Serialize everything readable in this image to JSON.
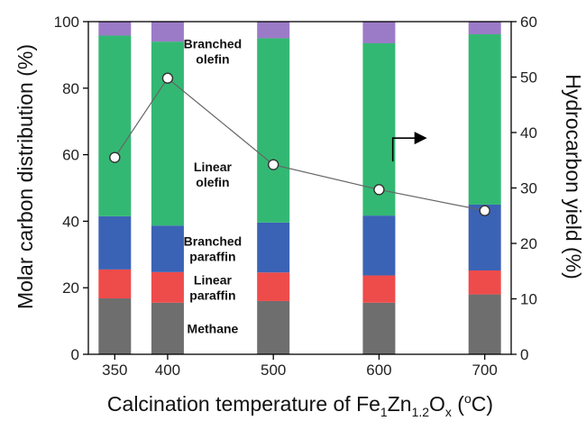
{
  "chart_data": {
    "type": "bar",
    "stacked": true,
    "categories": [
      "350",
      "400",
      "500",
      "600",
      "700"
    ],
    "x": [
      350,
      400,
      500,
      600,
      700
    ],
    "xlabel": "Calcination temperature of Fe₁Zn₁.₂Oₓ (ºC)",
    "xlabel_parts": {
      "pre": "Calcination temperature of Fe",
      "s1": "1",
      "zn": "Zn",
      "s2": "1.2",
      "o": "O",
      "s3": "x",
      "post": " (",
      "deg": "o",
      "unit": "C)"
    },
    "ylabel": "Molar carbon distribution (%)",
    "y2label": "Hydrocarbon yield (%)",
    "ylim": [
      0,
      100
    ],
    "y2lim": [
      0,
      60
    ],
    "yticks": [
      0,
      20,
      40,
      60,
      80,
      100
    ],
    "y2ticks": [
      0,
      10,
      20,
      30,
      40,
      50,
      60
    ],
    "series": [
      {
        "name": "Methane",
        "label_lines": [
          "Methane"
        ],
        "color": "#6e6e6e",
        "values": [
          16.8,
          15.5,
          16.0,
          15.5,
          18.0
        ]
      },
      {
        "name": "Linear paraffin",
        "label_lines": [
          "Linear",
          "paraffin"
        ],
        "color": "#ee4b4b",
        "values": [
          8.7,
          9.2,
          8.6,
          8.2,
          7.2
        ]
      },
      {
        "name": "Branched paraffin",
        "label_lines": [
          "Branched",
          "paraffin"
        ],
        "color": "#3b63b5",
        "values": [
          16.0,
          14.0,
          15.0,
          18.0,
          19.8
        ]
      },
      {
        "name": "Linear olefin",
        "label_lines": [
          "Linear",
          "olefin"
        ],
        "color": "#33b873",
        "values": [
          54.3,
          55.3,
          55.4,
          51.8,
          51.2
        ]
      },
      {
        "name": "Branched olefin",
        "label_lines": [
          "Branched",
          "olefin"
        ],
        "color": "#9b7bc7",
        "values": [
          4.2,
          6.0,
          5.0,
          6.5,
          3.8
        ]
      }
    ],
    "line_series": {
      "name": "Hydrocarbon yield",
      "axis": "right",
      "values": [
        35.5,
        49.8,
        34.2,
        29.7,
        25.9
      ]
    },
    "grid": false,
    "arrow_direction": "right"
  }
}
